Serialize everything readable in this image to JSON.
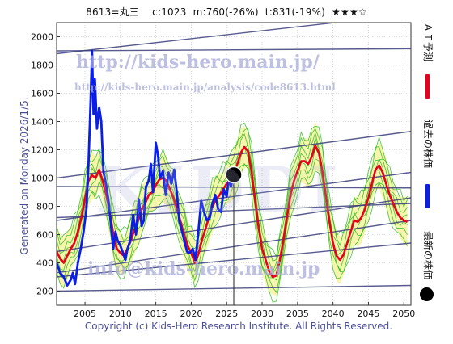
{
  "header": {
    "text": "8613=丸三    c:1023  m:760(-26%)  t:831(-19%)  ★★★☆"
  },
  "side_label": "Generated on Monday 2026/1/5.",
  "footer": "Copyright (c) Kids-Hero Research Institute. All Rights Reserved.",
  "watermarks": {
    "url1": "http://kids-hero.main.jp/",
    "url2": "http://kids-hero.main.jp/analysis/code8613.html",
    "logo": "KIDDI",
    "mail": "info@kids-hero.main.jp"
  },
  "legend": {
    "forecast": "ＡＩ予測",
    "past": "過去の株価",
    "latest": "最新の株価"
  },
  "colors": {
    "past": "#0a1ee6",
    "forecast": "#e8001c",
    "band_green": "#2fbf1f",
    "band_fill": "#f6f2a0",
    "trend": "#3a3f7a",
    "watermark": "#a9acd8"
  },
  "chart_data": {
    "type": "line",
    "title": "",
    "xlabel": "",
    "ylabel": "",
    "xlim": [
      2001,
      2051
    ],
    "ylim": [
      100,
      2100
    ],
    "xticks": [
      2005,
      2010,
      2015,
      2020,
      2025,
      2030,
      2035,
      2040,
      2045,
      2050
    ],
    "yticks": [
      200,
      400,
      600,
      800,
      1000,
      1200,
      1400,
      1600,
      1800,
      2000
    ],
    "grid": true,
    "latest_point": {
      "x": 2026.0,
      "y": 1023
    },
    "series": [
      {
        "role": "past",
        "x": [
          2001.0,
          2001.5,
          2002.0,
          2002.5,
          2003.0,
          2003.3,
          2003.6,
          2004.0,
          2004.4,
          2004.8,
          2005.2,
          2005.5,
          2005.8,
          2006.0,
          2006.2,
          2006.4,
          2006.7,
          2007.0,
          2007.3,
          2007.6,
          2008.0,
          2008.3,
          2008.7,
          2009.0,
          2009.3,
          2009.6,
          2010.0,
          2010.3,
          2010.7,
          2011.0,
          2011.4,
          2011.8,
          2012.2,
          2012.6,
          2013.0,
          2013.3,
          2013.6,
          2014.0,
          2014.3,
          2014.6,
          2015.0,
          2015.3,
          2015.6,
          2016.0,
          2016.4,
          2016.8,
          2017.2,
          2017.6,
          2018.0,
          2018.3,
          2018.7,
          2019.0,
          2019.4,
          2019.8,
          2020.2,
          2020.6,
          2021.0,
          2021.4,
          2021.8,
          2022.2,
          2022.6,
          2023.0,
          2023.4,
          2023.8,
          2024.2,
          2024.6,
          2025.0,
          2025.3,
          2025.6,
          2026.0
        ],
        "y": [
          400,
          330,
          300,
          240,
          280,
          330,
          250,
          400,
          500,
          620,
          780,
          1100,
          1550,
          1900,
          1450,
          1700,
          1350,
          1500,
          1400,
          1050,
          950,
          850,
          650,
          500,
          620,
          560,
          520,
          480,
          420,
          500,
          560,
          740,
          600,
          850,
          660,
          700,
          940,
          980,
          1100,
          900,
          1250,
          1160,
          1000,
          1050,
          880,
          1040,
          960,
          1060,
          880,
          700,
          620,
          560,
          480,
          470,
          500,
          420,
          620,
          840,
          760,
          700,
          720,
          820,
          880,
          780,
          760,
          920,
          870,
          990,
          940,
          1023
        ]
      },
      {
        "role": "forecast",
        "x": [
          2001.0,
          2001.5,
          2002.0,
          2002.5,
          2003.0,
          2003.5,
          2004.0,
          2004.5,
          2005.0,
          2005.5,
          2006.0,
          2006.5,
          2007.0,
          2007.5,
          2008.0,
          2008.5,
          2009.0,
          2009.5,
          2010.0,
          2010.5,
          2011.0,
          2011.5,
          2012.0,
          2012.5,
          2013.0,
          2013.5,
          2014.0,
          2014.5,
          2015.0,
          2015.5,
          2016.0,
          2016.5,
          2017.0,
          2017.5,
          2018.0,
          2018.5,
          2019.0,
          2019.5,
          2020.0,
          2020.5,
          2021.0,
          2021.5,
          2022.0,
          2022.5,
          2023.0,
          2023.5,
          2024.0,
          2024.5,
          2025.0,
          2025.5,
          2026.0,
          2026.5,
          2027.0,
          2027.5,
          2028.0,
          2028.5,
          2029.0,
          2029.5,
          2030.0,
          2030.5,
          2031.0,
          2031.5,
          2032.0,
          2032.5,
          2033.0,
          2033.5,
          2034.0,
          2034.5,
          2035.0,
          2035.5,
          2036.0,
          2036.5,
          2037.0,
          2037.5,
          2038.0,
          2038.5,
          2039.0,
          2039.5,
          2040.0,
          2040.5,
          2041.0,
          2041.5,
          2042.0,
          2042.5,
          2043.0,
          2043.5,
          2044.0,
          2044.5,
          2045.0,
          2045.5,
          2046.0,
          2046.5,
          2047.0,
          2047.5,
          2048.0,
          2048.5,
          2049.0,
          2049.5,
          2050.0,
          2050.5
        ],
        "y": [
          480,
          430,
          400,
          450,
          500,
          540,
          620,
          720,
          850,
          980,
          1020,
          1000,
          1060,
          980,
          880,
          760,
          600,
          500,
          470,
          450,
          500,
          560,
          640,
          700,
          780,
          820,
          880,
          900,
          950,
          990,
          1000,
          980,
          920,
          860,
          780,
          690,
          600,
          520,
          470,
          400,
          460,
          560,
          640,
          720,
          800,
          850,
          880,
          920,
          960,
          990,
          1030,
          1100,
          1180,
          1220,
          1190,
          1050,
          850,
          650,
          500,
          420,
          340,
          300,
          310,
          420,
          560,
          720,
          880,
          980,
          1050,
          1120,
          1120,
          1100,
          1150,
          1230,
          1180,
          1050,
          870,
          690,
          540,
          450,
          420,
          460,
          540,
          620,
          700,
          690,
          720,
          780,
          860,
          960,
          1060,
          1090,
          1040,
          960,
          880,
          820,
          760,
          720,
          700,
          690
        ]
      }
    ]
  }
}
